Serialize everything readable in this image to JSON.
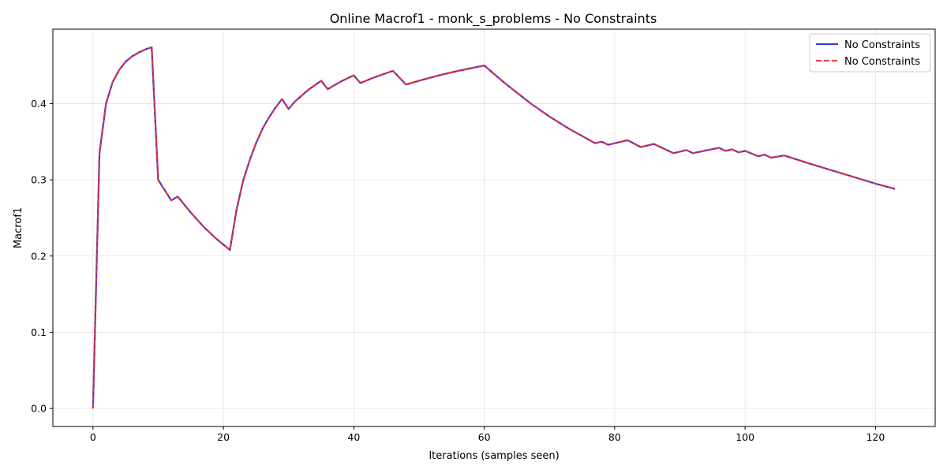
{
  "chart_data": {
    "type": "line",
    "title": "Online Macrof1 - monk_s_problems - No Constraints",
    "xlabel": "Iterations (samples seen)",
    "ylabel": "Macrof1",
    "xlim": [
      -6.15,
      129.15
    ],
    "ylim": [
      -0.0237,
      0.4977
    ],
    "xticks": [
      0,
      20,
      40,
      60,
      80,
      100,
      120
    ],
    "yticks": [
      0.0,
      0.1,
      0.2,
      0.3,
      0.4
    ],
    "ytick_labels": [
      "0.0",
      "0.1",
      "0.2",
      "0.3",
      "0.4"
    ],
    "grid": true,
    "legend_position": "top-right",
    "series": [
      {
        "name": "No Constraints",
        "color": "#2222dd",
        "style": "solid",
        "x": [
          0,
          1,
          2,
          3,
          4,
          5,
          6,
          7,
          8,
          9,
          10,
          12,
          13,
          15,
          17,
          19,
          21,
          22,
          23,
          24,
          25,
          26,
          27,
          28,
          29,
          30,
          31,
          33,
          35,
          36,
          38,
          40,
          41,
          43,
          46,
          48,
          50,
          53,
          56,
          60,
          63,
          67,
          70,
          73,
          77,
          78,
          79,
          82,
          84,
          86,
          89,
          91,
          92,
          96,
          97,
          98,
          99,
          100,
          102,
          103,
          104,
          106,
          110,
          115,
          120,
          123
        ],
        "y": [
          0.0,
          0.335,
          0.4,
          0.428,
          0.444,
          0.455,
          0.462,
          0.467,
          0.471,
          0.474,
          0.3,
          0.273,
          0.278,
          0.257,
          0.238,
          0.222,
          0.208,
          0.26,
          0.298,
          0.325,
          0.348,
          0.367,
          0.382,
          0.395,
          0.406,
          0.393,
          0.403,
          0.418,
          0.43,
          0.419,
          0.429,
          0.437,
          0.427,
          0.434,
          0.443,
          0.425,
          0.43,
          0.437,
          0.443,
          0.45,
          0.428,
          0.401,
          0.383,
          0.367,
          0.348,
          0.35,
          0.346,
          0.352,
          0.343,
          0.347,
          0.335,
          0.339,
          0.335,
          0.342,
          0.338,
          0.34,
          0.336,
          0.338,
          0.331,
          0.333,
          0.329,
          0.332,
          0.321,
          0.308,
          0.295,
          0.288
        ]
      },
      {
        "name": "No Constraints",
        "color": "#ee3333",
        "style": "dashed",
        "x": [
          0,
          1,
          2,
          3,
          4,
          5,
          6,
          7,
          8,
          9,
          10,
          12,
          13,
          15,
          17,
          19,
          21,
          22,
          23,
          24,
          25,
          26,
          27,
          28,
          29,
          30,
          31,
          33,
          35,
          36,
          38,
          40,
          41,
          43,
          46,
          48,
          50,
          53,
          56,
          60,
          63,
          67,
          70,
          73,
          77,
          78,
          79,
          82,
          84,
          86,
          89,
          91,
          92,
          96,
          97,
          98,
          99,
          100,
          102,
          103,
          104,
          106,
          110,
          115,
          120,
          123
        ],
        "y": [
          0.0,
          0.335,
          0.4,
          0.428,
          0.444,
          0.455,
          0.462,
          0.467,
          0.471,
          0.474,
          0.3,
          0.273,
          0.278,
          0.257,
          0.238,
          0.222,
          0.208,
          0.26,
          0.298,
          0.325,
          0.348,
          0.367,
          0.382,
          0.395,
          0.406,
          0.393,
          0.403,
          0.418,
          0.43,
          0.419,
          0.429,
          0.437,
          0.427,
          0.434,
          0.443,
          0.425,
          0.43,
          0.437,
          0.443,
          0.45,
          0.428,
          0.401,
          0.383,
          0.367,
          0.348,
          0.35,
          0.346,
          0.352,
          0.343,
          0.347,
          0.335,
          0.339,
          0.335,
          0.342,
          0.338,
          0.34,
          0.336,
          0.338,
          0.331,
          0.333,
          0.329,
          0.332,
          0.321,
          0.308,
          0.295,
          0.288
        ]
      }
    ]
  }
}
